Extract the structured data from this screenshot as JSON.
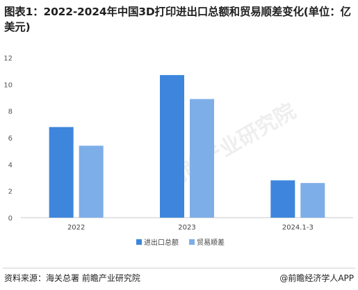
{
  "title": "图表1：2022-2024年中国3D打印进出口总额和贸易顺差变化(单位：亿美元)",
  "source": "资料来源：海关总署 前瞻产业研究院",
  "brand": "@前瞻经济学人APP",
  "watermarks": [
    "前瞻产业研究院"
  ],
  "colors": {
    "import_export": "#3d86dc",
    "trade_surplus": "#7eaee8"
  },
  "chart_data": {
    "type": "bar",
    "categories": [
      "2022",
      "2023",
      "2024.1-3"
    ],
    "series": [
      {
        "name": "进出口总额",
        "values": [
          6.8,
          10.7,
          2.8
        ]
      },
      {
        "name": "贸易顺差",
        "values": [
          5.4,
          8.9,
          2.6
        ]
      }
    ],
    "ylim": [
      0,
      12
    ],
    "yticks": [
      "0",
      "2",
      "4",
      "6",
      "8",
      "10",
      "12"
    ],
    "grid": false,
    "legend": "bottom-center"
  }
}
